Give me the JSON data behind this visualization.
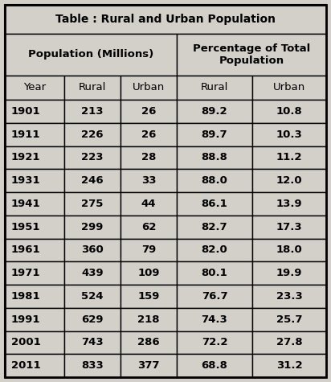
{
  "title": "Table : Rural and Urban Population",
  "col_header_1": "Population (Millions)",
  "col_header_2": "Percentage of Total\nPopulation",
  "sub_headers": [
    "Year",
    "Rural",
    "Urban",
    "Rural",
    "Urban"
  ],
  "rows": [
    [
      "1901",
      "213",
      "26",
      "89.2",
      "10.8"
    ],
    [
      "1911",
      "226",
      "26",
      "89.7",
      "10.3"
    ],
    [
      "1921",
      "223",
      "28",
      "88.8",
      "11.2"
    ],
    [
      "1931",
      "246",
      "33",
      "88.0",
      "12.0"
    ],
    [
      "1941",
      "275",
      "44",
      "86.1",
      "13.9"
    ],
    [
      "1951",
      "299",
      "62",
      "82.7",
      "17.3"
    ],
    [
      "1961",
      "360",
      "79",
      "82.0",
      "18.0"
    ],
    [
      "1971",
      "439",
      "109",
      "80.1",
      "19.9"
    ],
    [
      "1981",
      "524",
      "159",
      "76.7",
      "23.3"
    ],
    [
      "1991",
      "629",
      "218",
      "74.3",
      "25.7"
    ],
    [
      "2001",
      "743",
      "286",
      "72.2",
      "27.8"
    ],
    [
      "2011",
      "833",
      "377",
      "68.8",
      "31.2"
    ]
  ],
  "bg_color": "#d3d0c9",
  "border_color": "#000000",
  "text_color": "#000000",
  "font_size_title": 10,
  "font_size_header": 9.5,
  "font_size_data": 9.5
}
